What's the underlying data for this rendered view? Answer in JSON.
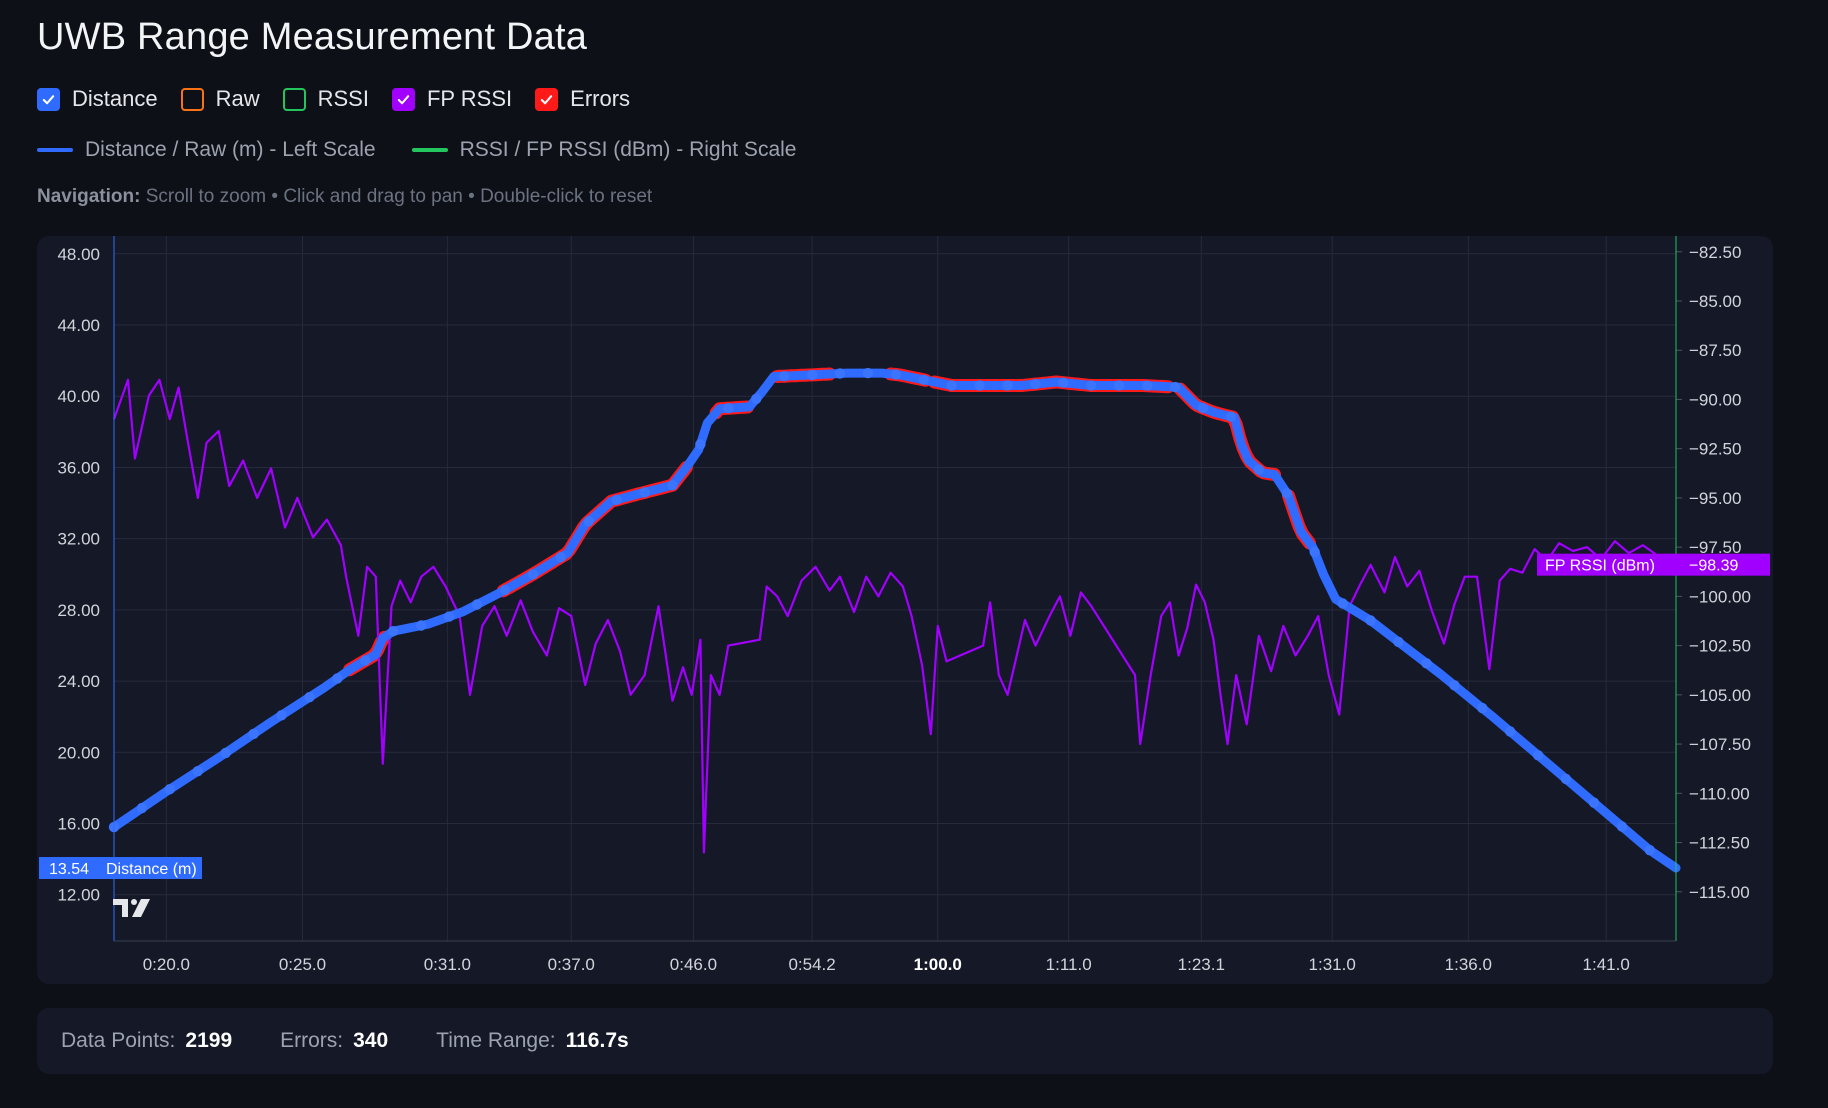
{
  "title": "UWB Range Measurement Data",
  "toggles": [
    {
      "label": "Distance",
      "checked": true,
      "color": "#2f6bff"
    },
    {
      "label": "Raw",
      "checked": false,
      "color": "#f97316"
    },
    {
      "label": "RSSI",
      "checked": false,
      "color": "#22c55e"
    },
    {
      "label": "FP RSSI",
      "checked": true,
      "color": "#a100ff"
    },
    {
      "label": "Errors",
      "checked": true,
      "color": "#ff1a1a"
    }
  ],
  "legend": [
    {
      "label": "Distance / Raw (m) - Left Scale",
      "color": "#2f6bff"
    },
    {
      "label": "RSSI / FP RSSI (dBm) - Right Scale",
      "color": "#22c55e"
    }
  ],
  "navigation": {
    "label": "Navigation:",
    "text": "Scroll to zoom • Click and drag to pan • Double-click to reset"
  },
  "stats": {
    "points_label": "Data Points:",
    "points_value": "2199",
    "errors_label": "Errors:",
    "errors_value": "340",
    "range_label": "Time Range:",
    "range_value": "116.7s"
  },
  "chart_data": {
    "type": "line",
    "left_axis": {
      "ticks": [
        "48.00",
        "44.00",
        "40.00",
        "36.00",
        "32.00",
        "28.00",
        "24.00",
        "20.00",
        "16.00",
        "12.00"
      ],
      "range": [
        9.4,
        49.0
      ],
      "unit": "m"
    },
    "right_axis": {
      "ticks": [
        "-82.50",
        "-85.00",
        "-87.50",
        "-90.00",
        "-92.50",
        "-95.00",
        "-97.50",
        "-100.00",
        "-102.50",
        "-105.00",
        "-107.50",
        "-110.00",
        "-112.50",
        "-115.00"
      ],
      "range": [
        -117.5,
        -81.7
      ],
      "unit": "dBm"
    },
    "x_axis": {
      "range": [
        16,
        105.5
      ],
      "ticks": [
        {
          "label": "0:20.0",
          "t": 19.0,
          "bold": false
        },
        {
          "label": "0:25.0",
          "t": 26.8,
          "bold": false
        },
        {
          "label": "0:31.0",
          "t": 35.1,
          "bold": false
        },
        {
          "label": "0:37.0",
          "t": 42.2,
          "bold": false
        },
        {
          "label": "0:46.0",
          "t": 49.2,
          "bold": false
        },
        {
          "label": "0:54.2",
          "t": 56.0,
          "bold": false
        },
        {
          "label": "1:00.0",
          "t": 63.2,
          "bold": true
        },
        {
          "label": "1:11.0",
          "t": 70.7,
          "bold": false
        },
        {
          "label": "1:23.1",
          "t": 78.3,
          "bold": false
        },
        {
          "label": "1:31.0",
          "t": 85.8,
          "bold": false
        },
        {
          "label": "1:36.0",
          "t": 93.6,
          "bold": false
        },
        {
          "label": "1:41.0",
          "t": 101.5,
          "bold": false
        }
      ]
    },
    "series": [
      {
        "name": "Distance (m)",
        "axis": "left",
        "color": "#2f6bff",
        "last_value": "13.54",
        "points": [
          [
            16,
            15.8
          ],
          [
            19,
            17.8
          ],
          [
            22,
            19.7
          ],
          [
            25,
            21.7
          ],
          [
            28,
            23.6
          ],
          [
            29.6,
            24.7
          ],
          [
            31,
            25.5
          ],
          [
            31.4,
            26.4
          ],
          [
            32,
            26.8
          ],
          [
            34,
            27.2
          ],
          [
            36,
            27.9
          ],
          [
            38,
            28.9
          ],
          [
            40,
            30.0
          ],
          [
            42,
            31.2
          ],
          [
            43,
            32.8
          ],
          [
            44.5,
            34.1
          ],
          [
            46,
            34.5
          ],
          [
            48,
            35.0
          ],
          [
            48.8,
            36.0
          ],
          [
            49.5,
            37.0
          ],
          [
            50,
            38.5
          ],
          [
            50.7,
            39.3
          ],
          [
            52.4,
            39.4
          ],
          [
            53.1,
            40.2
          ],
          [
            53.8,
            41.1
          ],
          [
            56,
            41.2
          ],
          [
            58,
            41.3
          ],
          [
            60,
            41.3
          ],
          [
            61,
            41.2
          ],
          [
            63,
            40.8
          ],
          [
            64,
            40.6
          ],
          [
            68,
            40.6
          ],
          [
            70,
            40.8
          ],
          [
            72,
            40.6
          ],
          [
            75,
            40.6
          ],
          [
            77,
            40.5
          ],
          [
            78,
            39.5
          ],
          [
            79,
            39.1
          ],
          [
            80.2,
            38.8
          ],
          [
            80.6,
            37.3
          ],
          [
            81,
            36.4
          ],
          [
            81.8,
            35.7
          ],
          [
            82.5,
            35.6
          ],
          [
            83.3,
            34.4
          ],
          [
            84.0,
            32.4
          ],
          [
            84.7,
            31.5
          ],
          [
            85.3,
            30.0
          ],
          [
            86,
            28.6
          ],
          [
            88,
            27.4
          ],
          [
            90,
            25.9
          ],
          [
            92,
            24.4
          ],
          [
            95,
            22.0
          ],
          [
            98,
            19.5
          ],
          [
            101,
            17.0
          ],
          [
            104,
            14.5
          ],
          [
            105.5,
            13.5
          ]
        ]
      },
      {
        "name": "FP RSSI (dBm)",
        "axis": "right",
        "color": "#a100ff",
        "last_value": "-98.39",
        "points": [
          [
            16,
            -91.0
          ],
          [
            16.8,
            -89.0
          ],
          [
            17.2,
            -93.0
          ],
          [
            18,
            -89.8
          ],
          [
            18.6,
            -89.0
          ],
          [
            19.2,
            -91.0
          ],
          [
            19.7,
            -89.4
          ],
          [
            20.1,
            -91.5
          ],
          [
            20.8,
            -95.0
          ],
          [
            21.3,
            -92.2
          ],
          [
            22,
            -91.6
          ],
          [
            22.6,
            -94.4
          ],
          [
            23.4,
            -93.1
          ],
          [
            24.2,
            -95.0
          ],
          [
            25.0,
            -93.5
          ],
          [
            25.8,
            -96.5
          ],
          [
            26.5,
            -95.0
          ],
          [
            27.4,
            -97.0
          ],
          [
            28.2,
            -96.1
          ],
          [
            29.0,
            -97.4
          ],
          [
            29.3,
            -99.0
          ],
          [
            30,
            -102.0
          ],
          [
            30.5,
            -98.5
          ],
          [
            31,
            -99.0
          ],
          [
            31.4,
            -108.5
          ],
          [
            31.9,
            -100.5
          ],
          [
            32.4,
            -99.2
          ],
          [
            33.0,
            -100.3
          ],
          [
            33.6,
            -99.0
          ],
          [
            34.3,
            -98.5
          ],
          [
            35.0,
            -99.5
          ],
          [
            35.8,
            -101.0
          ],
          [
            36.4,
            -105.0
          ],
          [
            37.1,
            -101.5
          ],
          [
            37.8,
            -100.5
          ],
          [
            38.5,
            -102.0
          ],
          [
            39.3,
            -100.2
          ],
          [
            40.0,
            -101.8
          ],
          [
            40.8,
            -103.0
          ],
          [
            41.5,
            -100.6
          ],
          [
            42.2,
            -101.0
          ],
          [
            43,
            -104.5
          ],
          [
            43.6,
            -102.4
          ],
          [
            44.3,
            -101.2
          ],
          [
            45.0,
            -102.8
          ],
          [
            45.6,
            -105.0
          ],
          [
            46.4,
            -104.0
          ],
          [
            47.2,
            -100.5
          ],
          [
            48,
            -105.3
          ],
          [
            48.6,
            -103.6
          ],
          [
            49.1,
            -105.0
          ],
          [
            49.6,
            -102.2
          ],
          [
            49.8,
            -113.0
          ],
          [
            50.2,
            -104.0
          ],
          [
            50.7,
            -105.0
          ],
          [
            51.2,
            -102.5
          ],
          [
            53,
            -102.2
          ],
          [
            53.4,
            -99.5
          ],
          [
            54,
            -100.0
          ],
          [
            54.6,
            -101.0
          ],
          [
            55.4,
            -99.2
          ],
          [
            56.2,
            -98.5
          ],
          [
            57,
            -99.7
          ],
          [
            57.6,
            -99.0
          ],
          [
            58.4,
            -100.8
          ],
          [
            59.1,
            -99.0
          ],
          [
            59.8,
            -100.0
          ],
          [
            60.5,
            -98.8
          ],
          [
            61.2,
            -99.5
          ],
          [
            61.7,
            -101.0
          ],
          [
            62.3,
            -103.5
          ],
          [
            62.8,
            -107.0
          ],
          [
            63.2,
            -101.5
          ],
          [
            63.7,
            -103.3
          ],
          [
            65.8,
            -102.5
          ],
          [
            66.2,
            -100.3
          ],
          [
            66.7,
            -104.0
          ],
          [
            67.2,
            -105.0
          ],
          [
            68.2,
            -101.2
          ],
          [
            68.8,
            -102.5
          ],
          [
            69.6,
            -101.0
          ],
          [
            70.2,
            -100.0
          ],
          [
            70.8,
            -102.0
          ],
          [
            71.4,
            -99.8
          ],
          [
            72,
            -100.5
          ],
          [
            74.5,
            -104.0
          ],
          [
            74.8,
            -107.5
          ],
          [
            75.4,
            -104.0
          ],
          [
            76,
            -101.0
          ],
          [
            76.5,
            -100.3
          ],
          [
            77,
            -103.0
          ],
          [
            77.5,
            -101.6
          ],
          [
            78,
            -99.4
          ],
          [
            78.5,
            -100.3
          ],
          [
            79,
            -102.2
          ],
          [
            79.4,
            -105.0
          ],
          [
            79.8,
            -107.5
          ],
          [
            80.3,
            -104.0
          ],
          [
            80.9,
            -106.5
          ],
          [
            81.6,
            -102.0
          ],
          [
            82.3,
            -103.8
          ],
          [
            83.0,
            -101.5
          ],
          [
            83.7,
            -103.0
          ],
          [
            84.4,
            -102.0
          ],
          [
            85.0,
            -101.0
          ],
          [
            85.6,
            -104.0
          ],
          [
            86.2,
            -106.0
          ],
          [
            86.8,
            -100.5
          ],
          [
            87.4,
            -99.4
          ],
          [
            88.0,
            -98.4
          ],
          [
            88.8,
            -99.8
          ],
          [
            89.4,
            -98.0
          ],
          [
            90.1,
            -99.5
          ],
          [
            90.8,
            -98.7
          ],
          [
            91.5,
            -100.7
          ],
          [
            92.2,
            -102.4
          ],
          [
            92.8,
            -100.4
          ],
          [
            93.4,
            -99.0
          ],
          [
            94.1,
            -99.0
          ],
          [
            94.8,
            -103.7
          ],
          [
            95.4,
            -99.2
          ],
          [
            96.0,
            -98.6
          ],
          [
            96.7,
            -98.8
          ],
          [
            97.4,
            -97.6
          ],
          [
            98.1,
            -98.2
          ],
          [
            98.8,
            -97.3
          ],
          [
            99.6,
            -97.7
          ],
          [
            100.4,
            -97.5
          ],
          [
            101.2,
            -98.1
          ],
          [
            102,
            -97.2
          ],
          [
            102.8,
            -97.8
          ],
          [
            103.6,
            -97.4
          ],
          [
            104.4,
            -97.9
          ],
          [
            105.0,
            -98.0
          ],
          [
            105.5,
            -98.39
          ]
        ]
      }
    ],
    "error_segments": [
      [
        29.5,
        31.5
      ],
      [
        38.3,
        44.8
      ],
      [
        44.8,
        48.8
      ],
      [
        50.5,
        52.4
      ],
      [
        54,
        57
      ],
      [
        60.5,
        62.6
      ],
      [
        63,
        76.5
      ],
      [
        77.1,
        82.5
      ],
      [
        83.3,
        84.6
      ]
    ],
    "series_markers": [
      {
        "label": "Distance (m)"
      },
      {
        "label": "FP RSSI (dBm)"
      }
    ]
  }
}
